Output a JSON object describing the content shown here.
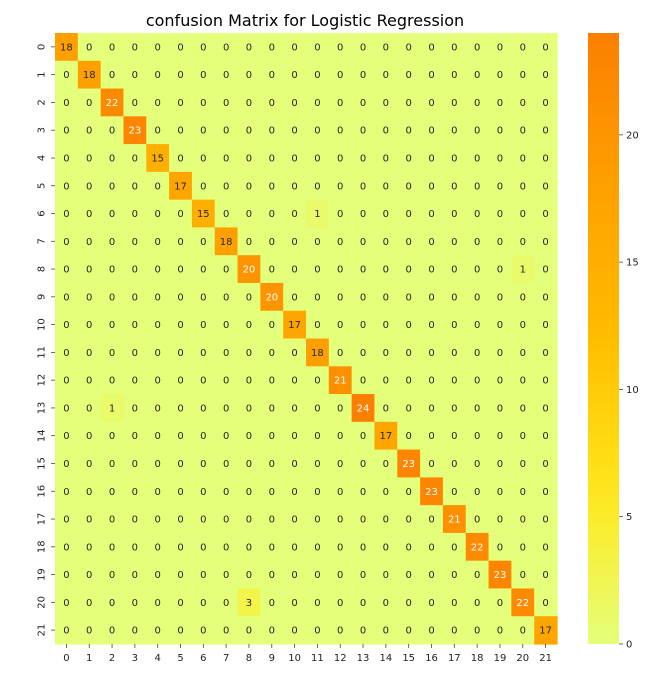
{
  "chart_data": {
    "type": "heatmap",
    "title": "confusion Matrix for Logistic Regression",
    "xlabel": "",
    "ylabel": "",
    "x_categories": [
      "0",
      "1",
      "2",
      "3",
      "4",
      "5",
      "6",
      "7",
      "8",
      "9",
      "10",
      "11",
      "12",
      "13",
      "14",
      "15",
      "16",
      "17",
      "18",
      "19",
      "20",
      "21"
    ],
    "y_categories": [
      "0",
      "1",
      "2",
      "3",
      "4",
      "5",
      "6",
      "7",
      "8",
      "9",
      "10",
      "11",
      "12",
      "13",
      "14",
      "15",
      "16",
      "17",
      "18",
      "19",
      "20",
      "21"
    ],
    "matrix": [
      [
        18,
        0,
        0,
        0,
        0,
        0,
        0,
        0,
        0,
        0,
        0,
        0,
        0,
        0,
        0,
        0,
        0,
        0,
        0,
        0,
        0,
        0
      ],
      [
        0,
        18,
        0,
        0,
        0,
        0,
        0,
        0,
        0,
        0,
        0,
        0,
        0,
        0,
        0,
        0,
        0,
        0,
        0,
        0,
        0,
        0
      ],
      [
        0,
        0,
        22,
        0,
        0,
        0,
        0,
        0,
        0,
        0,
        0,
        0,
        0,
        0,
        0,
        0,
        0,
        0,
        0,
        0,
        0,
        0
      ],
      [
        0,
        0,
        0,
        23,
        0,
        0,
        0,
        0,
        0,
        0,
        0,
        0,
        0,
        0,
        0,
        0,
        0,
        0,
        0,
        0,
        0,
        0
      ],
      [
        0,
        0,
        0,
        0,
        15,
        0,
        0,
        0,
        0,
        0,
        0,
        0,
        0,
        0,
        0,
        0,
        0,
        0,
        0,
        0,
        0,
        0
      ],
      [
        0,
        0,
        0,
        0,
        0,
        17,
        0,
        0,
        0,
        0,
        0,
        0,
        0,
        0,
        0,
        0,
        0,
        0,
        0,
        0,
        0,
        0
      ],
      [
        0,
        0,
        0,
        0,
        0,
        0,
        15,
        0,
        0,
        0,
        0,
        1,
        0,
        0,
        0,
        0,
        0,
        0,
        0,
        0,
        0,
        0
      ],
      [
        0,
        0,
        0,
        0,
        0,
        0,
        0,
        18,
        0,
        0,
        0,
        0,
        0,
        0,
        0,
        0,
        0,
        0,
        0,
        0,
        0,
        0
      ],
      [
        0,
        0,
        0,
        0,
        0,
        0,
        0,
        0,
        20,
        0,
        0,
        0,
        0,
        0,
        0,
        0,
        0,
        0,
        0,
        0,
        1,
        0
      ],
      [
        0,
        0,
        0,
        0,
        0,
        0,
        0,
        0,
        0,
        20,
        0,
        0,
        0,
        0,
        0,
        0,
        0,
        0,
        0,
        0,
        0,
        0
      ],
      [
        0,
        0,
        0,
        0,
        0,
        0,
        0,
        0,
        0,
        0,
        17,
        0,
        0,
        0,
        0,
        0,
        0,
        0,
        0,
        0,
        0,
        0
      ],
      [
        0,
        0,
        0,
        0,
        0,
        0,
        0,
        0,
        0,
        0,
        0,
        18,
        0,
        0,
        0,
        0,
        0,
        0,
        0,
        0,
        0,
        0
      ],
      [
        0,
        0,
        0,
        0,
        0,
        0,
        0,
        0,
        0,
        0,
        0,
        0,
        21,
        0,
        0,
        0,
        0,
        0,
        0,
        0,
        0,
        0
      ],
      [
        0,
        0,
        1,
        0,
        0,
        0,
        0,
        0,
        0,
        0,
        0,
        0,
        0,
        24,
        0,
        0,
        0,
        0,
        0,
        0,
        0,
        0
      ],
      [
        0,
        0,
        0,
        0,
        0,
        0,
        0,
        0,
        0,
        0,
        0,
        0,
        0,
        0,
        17,
        0,
        0,
        0,
        0,
        0,
        0,
        0
      ],
      [
        0,
        0,
        0,
        0,
        0,
        0,
        0,
        0,
        0,
        0,
        0,
        0,
        0,
        0,
        0,
        23,
        0,
        0,
        0,
        0,
        0,
        0
      ],
      [
        0,
        0,
        0,
        0,
        0,
        0,
        0,
        0,
        0,
        0,
        0,
        0,
        0,
        0,
        0,
        0,
        23,
        0,
        0,
        0,
        0,
        0
      ],
      [
        0,
        0,
        0,
        0,
        0,
        0,
        0,
        0,
        0,
        0,
        0,
        0,
        0,
        0,
        0,
        0,
        0,
        21,
        0,
        0,
        0,
        0
      ],
      [
        0,
        0,
        0,
        0,
        0,
        0,
        0,
        0,
        0,
        0,
        0,
        0,
        0,
        0,
        0,
        0,
        0,
        0,
        22,
        0,
        0,
        0
      ],
      [
        0,
        0,
        0,
        0,
        0,
        0,
        0,
        0,
        0,
        0,
        0,
        0,
        0,
        0,
        0,
        0,
        0,
        0,
        0,
        23,
        0,
        0
      ],
      [
        0,
        0,
        0,
        0,
        0,
        0,
        0,
        0,
        3,
        0,
        0,
        0,
        0,
        0,
        0,
        0,
        0,
        0,
        0,
        0,
        22,
        0
      ],
      [
        0,
        0,
        0,
        0,
        0,
        0,
        0,
        0,
        0,
        0,
        0,
        0,
        0,
        0,
        0,
        0,
        0,
        0,
        0,
        0,
        0,
        17
      ]
    ],
    "value_range": [
      0,
      24
    ],
    "colormap": "Wistia",
    "colorbar_ticks": [
      0,
      5,
      10,
      15,
      20
    ],
    "colorbar_position": "right",
    "annotated": true,
    "grid": false
  }
}
